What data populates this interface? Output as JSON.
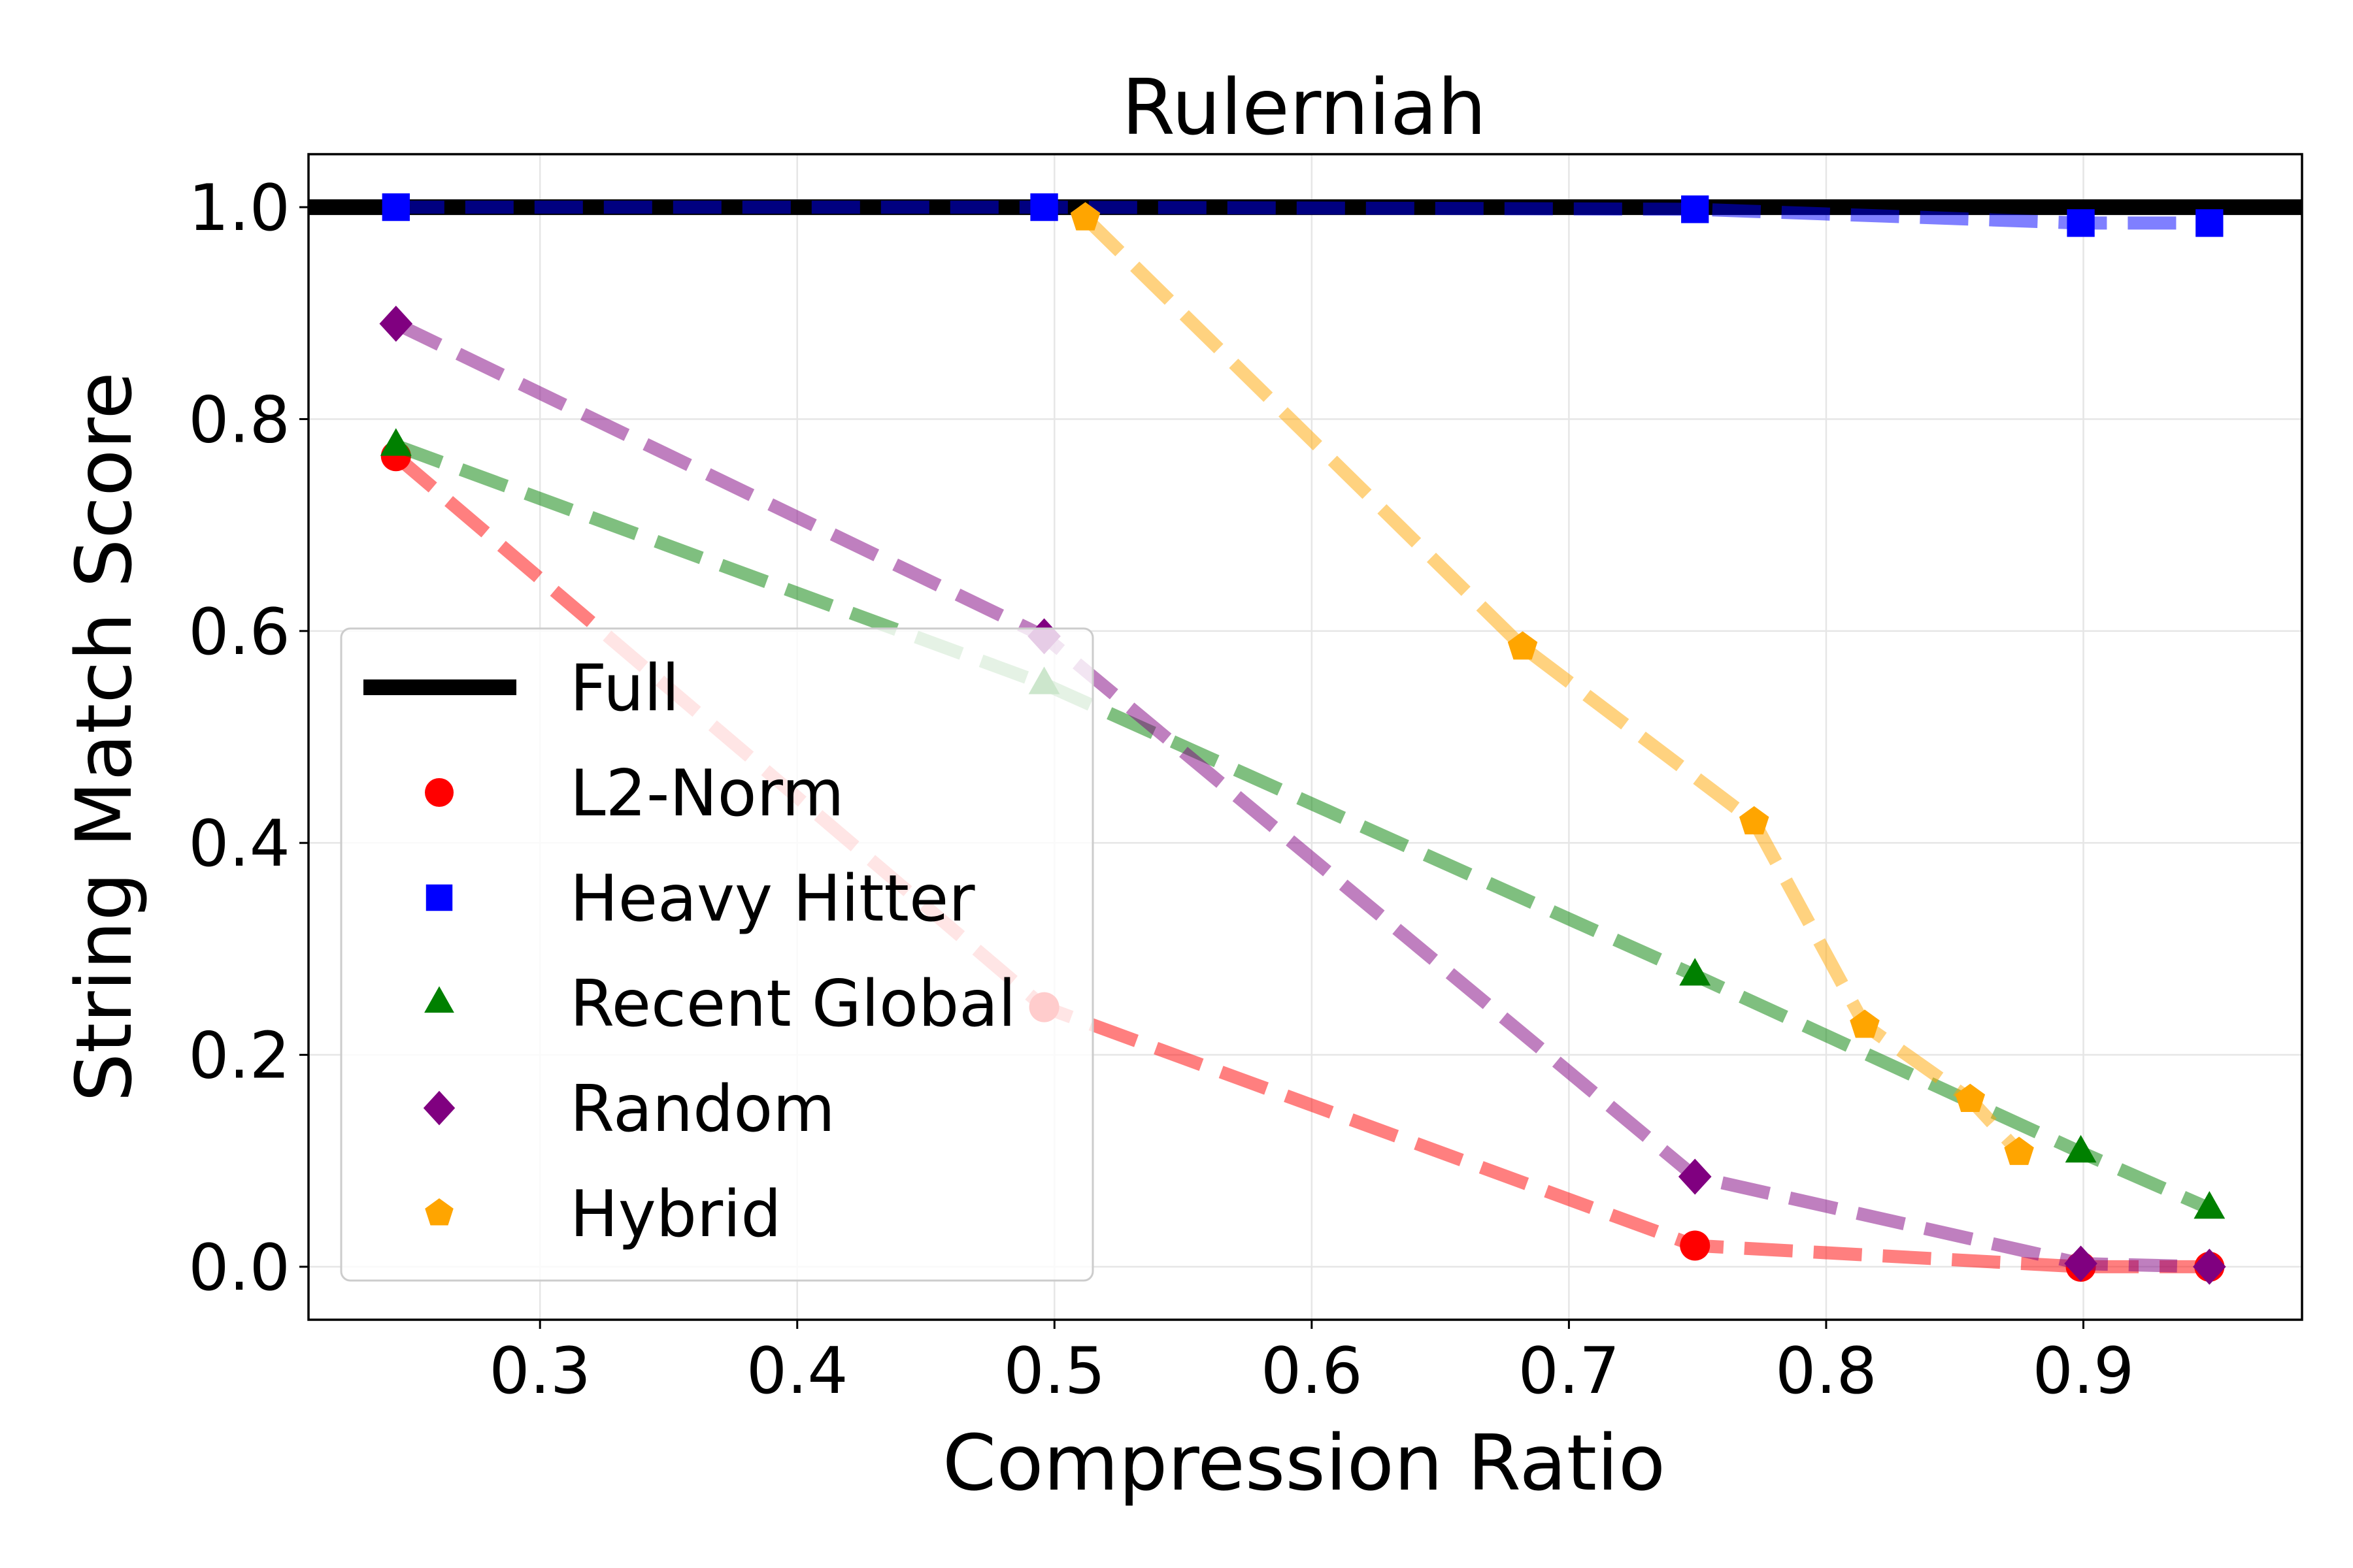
{
  "chart_data": {
    "type": "line",
    "title": "Rulerniah",
    "xlabel": "Compression Ratio",
    "ylabel": "String Match Score",
    "xlim": [
      0.21,
      0.985
    ],
    "ylim": [
      -0.05,
      1.05
    ],
    "xticks": [
      {
        "value": 0.3,
        "label": "0.3"
      },
      {
        "value": 0.4,
        "label": "0.4"
      },
      {
        "value": 0.5,
        "label": "0.5"
      },
      {
        "value": 0.6,
        "label": "0.6"
      },
      {
        "value": 0.7,
        "label": "0.7"
      },
      {
        "value": 0.8,
        "label": "0.8"
      },
      {
        "value": 0.9,
        "label": "0.9"
      }
    ],
    "yticks": [
      {
        "value": 0.0,
        "label": "0.0"
      },
      {
        "value": 0.2,
        "label": "0.2"
      },
      {
        "value": 0.4,
        "label": "0.4"
      },
      {
        "value": 0.6,
        "label": "0.6"
      },
      {
        "value": 0.8,
        "label": "0.8"
      },
      {
        "value": 1.0,
        "label": "1.0"
      }
    ],
    "grid": true,
    "legend_position": "lower-left",
    "reference": {
      "name": "Full",
      "y": 1.0,
      "color": "#000000"
    },
    "series": [
      {
        "name": "L2-Norm",
        "color": "#ff0000",
        "marker": "circle",
        "x": [
          0.244,
          0.496,
          0.749,
          0.899,
          0.949
        ],
        "y": [
          0.765,
          0.245,
          0.02,
          0.0,
          0.0
        ]
      },
      {
        "name": "Heavy Hitter",
        "color": "#0000ff",
        "marker": "square",
        "x": [
          0.244,
          0.496,
          0.749,
          0.899,
          0.949
        ],
        "y": [
          1.0,
          1.0,
          0.998,
          0.985,
          0.985
        ]
      },
      {
        "name": "Recent Global",
        "color": "#008000",
        "marker": "triangle",
        "x": [
          0.244,
          0.496,
          0.749,
          0.899,
          0.949
        ],
        "y": [
          0.775,
          0.55,
          0.275,
          0.108,
          0.055
        ]
      },
      {
        "name": "Random",
        "color": "#800080",
        "marker": "diamond",
        "x": [
          0.244,
          0.496,
          0.749,
          0.899,
          0.949
        ],
        "y": [
          0.89,
          0.595,
          0.085,
          0.003,
          0.0
        ]
      },
      {
        "name": "Hybrid",
        "color": "#ffa500",
        "marker": "pentagon",
        "x": [
          0.512,
          0.682,
          0.772,
          0.815,
          0.856,
          0.875
        ],
        "y": [
          0.99,
          0.585,
          0.42,
          0.228,
          0.158,
          0.108
        ]
      }
    ]
  }
}
